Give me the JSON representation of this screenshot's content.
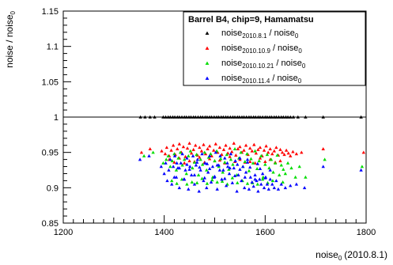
{
  "chart_data": {
    "type": "scatter",
    "title": "",
    "xlabel": "noise",
    "xlabel_sub": "0",
    "xlabel_suffix": "(2010.8.1)",
    "ylabel": "noise / noise",
    "ylabel_sub": "0",
    "xlim": [
      1200,
      1800
    ],
    "ylim": [
      0.85,
      1.15
    ],
    "x_ticks": [
      {
        "value": 1200,
        "label": "1200"
      },
      {
        "value": 1400,
        "label": "1400"
      },
      {
        "value": 1600,
        "label": "1600"
      },
      {
        "value": 1800,
        "label": "1800"
      }
    ],
    "y_ticks": [
      {
        "value": 0.85,
        "label": "0.85"
      },
      {
        "value": 0.9,
        "label": "0.9"
      },
      {
        "value": 0.95,
        "label": "0.95"
      },
      {
        "value": 1.0,
        "label": "1"
      },
      {
        "value": 1.05,
        "label": "1.05"
      },
      {
        "value": 1.1,
        "label": "1.1"
      },
      {
        "value": 1.15,
        "label": "1.15"
      }
    ],
    "reference_line": 1.0,
    "legend": {
      "title": "Barrel B4, chip=9, Hamamatsu",
      "placement": "top-right"
    },
    "series": [
      {
        "name": "noise",
        "name_sub": "2010.8.1",
        "name_suffix": " / noise",
        "name_suffix_sub": "0",
        "color": "#000000",
        "x": [
          1353,
          1362,
          1372,
          1381,
          1398,
          1403,
          1408,
          1412,
          1417,
          1421,
          1426,
          1430,
          1435,
          1440,
          1444,
          1449,
          1453,
          1458,
          1462,
          1467,
          1472,
          1476,
          1481,
          1485,
          1490,
          1494,
          1499,
          1504,
          1508,
          1513,
          1517,
          1522,
          1526,
          1531,
          1536,
          1540,
          1545,
          1549,
          1554,
          1558,
          1563,
          1568,
          1572,
          1577,
          1581,
          1586,
          1590,
          1595,
          1600,
          1604,
          1609,
          1613,
          1618,
          1622,
          1627,
          1632,
          1636,
          1641,
          1645,
          1650,
          1656,
          1665,
          1680,
          1715,
          1790
        ],
        "y": [
          1,
          1,
          1,
          1,
          1,
          1,
          1,
          1,
          1,
          1,
          1,
          1,
          1,
          1,
          1,
          1,
          1,
          1,
          1,
          1,
          1,
          1,
          1,
          1,
          1,
          1,
          1,
          1,
          1,
          1,
          1,
          1,
          1,
          1,
          1,
          1,
          1,
          1,
          1,
          1,
          1,
          1,
          1,
          1,
          1,
          1,
          1,
          1,
          1,
          1,
          1,
          1,
          1,
          1,
          1,
          1,
          1,
          1,
          1,
          1,
          1,
          1,
          1,
          1,
          1
        ]
      },
      {
        "name": "noise",
        "name_sub": "2010.10.9",
        "name_suffix": " / noise",
        "name_suffix_sub": "0",
        "color": "#ff0000",
        "x": [
          1355,
          1372,
          1395,
          1402,
          1405,
          1410,
          1414,
          1418,
          1422,
          1426,
          1430,
          1434,
          1438,
          1442,
          1446,
          1450,
          1454,
          1458,
          1462,
          1466,
          1470,
          1474,
          1478,
          1482,
          1486,
          1490,
          1494,
          1498,
          1502,
          1506,
          1510,
          1514,
          1518,
          1522,
          1526,
          1530,
          1534,
          1538,
          1542,
          1546,
          1550,
          1554,
          1558,
          1562,
          1566,
          1570,
          1574,
          1578,
          1582,
          1586,
          1590,
          1594,
          1598,
          1602,
          1606,
          1610,
          1614,
          1618,
          1622,
          1626,
          1630,
          1634,
          1638,
          1642,
          1646,
          1650,
          1655,
          1662,
          1672,
          1715,
          1795,
          1410,
          1430,
          1450,
          1470,
          1490,
          1510,
          1530,
          1550,
          1570,
          1590,
          1610,
          1630,
          1420,
          1440,
          1460,
          1480,
          1500,
          1520,
          1540,
          1560,
          1580,
          1600,
          1620
        ],
        "y": [
          0.95,
          0.955,
          0.952,
          0.948,
          0.957,
          0.945,
          0.953,
          0.96,
          0.947,
          0.955,
          0.962,
          0.95,
          0.958,
          0.944,
          0.956,
          0.963,
          0.949,
          0.954,
          0.96,
          0.946,
          0.957,
          0.952,
          0.961,
          0.948,
          0.955,
          0.959,
          0.945,
          0.953,
          0.962,
          0.95,
          0.957,
          0.947,
          0.954,
          0.96,
          0.949,
          0.956,
          0.951,
          0.963,
          0.946,
          0.955,
          0.958,
          0.95,
          0.953,
          0.96,
          0.947,
          0.956,
          0.952,
          0.961,
          0.949,
          0.954,
          0.957,
          0.945,
          0.953,
          0.959,
          0.95,
          0.955,
          0.948,
          0.952,
          0.957,
          0.946,
          0.954,
          0.95,
          0.947,
          0.953,
          0.949,
          0.945,
          0.951,
          0.948,
          0.95,
          0.955,
          0.95,
          0.94,
          0.942,
          0.938,
          0.943,
          0.941,
          0.939,
          0.944,
          0.94,
          0.937,
          0.942,
          0.94,
          0.938,
          0.936,
          0.935,
          0.937,
          0.936,
          0.938,
          0.935,
          0.937,
          0.936,
          0.935,
          0.937,
          0.936
        ]
      },
      {
        "name": "noise",
        "name_sub": "2010.10.21",
        "name_suffix": " / noise",
        "name_suffix_sub": "0",
        "color": "#00dd00",
        "x": [
          1360,
          1378,
          1398,
          1404,
          1408,
          1412,
          1416,
          1420,
          1424,
          1428,
          1432,
          1436,
          1440,
          1444,
          1448,
          1452,
          1456,
          1460,
          1464,
          1468,
          1472,
          1476,
          1480,
          1484,
          1488,
          1492,
          1496,
          1500,
          1504,
          1508,
          1512,
          1516,
          1520,
          1524,
          1528,
          1532,
          1536,
          1540,
          1544,
          1548,
          1552,
          1556,
          1560,
          1564,
          1568,
          1572,
          1576,
          1580,
          1584,
          1588,
          1592,
          1596,
          1600,
          1604,
          1608,
          1612,
          1616,
          1620,
          1624,
          1628,
          1632,
          1636,
          1640,
          1645,
          1652,
          1660,
          1668,
          1680,
          1718,
          1792,
          1415,
          1435,
          1455,
          1475,
          1495,
          1515,
          1535,
          1555,
          1575,
          1595,
          1615,
          1635,
          1425,
          1445,
          1465,
          1485,
          1505,
          1525,
          1545,
          1565,
          1585,
          1605
        ],
        "y": [
          0.945,
          0.95,
          0.935,
          0.94,
          0.945,
          0.93,
          0.938,
          0.948,
          0.925,
          0.942,
          0.95,
          0.932,
          0.94,
          0.92,
          0.945,
          0.952,
          0.928,
          0.936,
          0.947,
          0.918,
          0.94,
          0.933,
          0.95,
          0.925,
          0.943,
          0.948,
          0.915,
          0.938,
          0.952,
          0.93,
          0.941,
          0.922,
          0.936,
          0.947,
          0.926,
          0.94,
          0.933,
          0.955,
          0.918,
          0.942,
          0.95,
          0.93,
          0.937,
          0.948,
          0.924,
          0.941,
          0.935,
          0.952,
          0.927,
          0.938,
          0.945,
          0.915,
          0.933,
          0.947,
          0.928,
          0.94,
          0.922,
          0.935,
          0.946,
          0.918,
          0.932,
          0.926,
          0.92,
          0.935,
          0.928,
          0.915,
          0.93,
          0.915,
          0.94,
          0.93,
          0.91,
          0.912,
          0.908,
          0.913,
          0.911,
          0.909,
          0.914,
          0.91,
          0.907,
          0.912,
          0.91,
          0.908,
          0.906,
          0.905,
          0.907,
          0.906,
          0.908,
          0.905,
          0.907,
          0.906,
          0.905,
          0.907
        ]
      },
      {
        "name": "noise",
        "name_sub": "2010.11.4",
        "name_suffix": " / noise",
        "name_suffix_sub": "0",
        "color": "#0000ff",
        "x": [
          1352,
          1370,
          1394,
          1400,
          1403,
          1406,
          1409,
          1412,
          1415,
          1418,
          1421,
          1424,
          1427,
          1430,
          1433,
          1436,
          1439,
          1442,
          1445,
          1448,
          1451,
          1454,
          1457,
          1460,
          1463,
          1466,
          1469,
          1472,
          1475,
          1478,
          1481,
          1484,
          1487,
          1490,
          1493,
          1496,
          1499,
          1502,
          1505,
          1508,
          1511,
          1514,
          1517,
          1520,
          1523,
          1526,
          1529,
          1532,
          1535,
          1538,
          1541,
          1544,
          1547,
          1550,
          1553,
          1556,
          1559,
          1562,
          1565,
          1568,
          1571,
          1574,
          1577,
          1580,
          1583,
          1586,
          1589,
          1592,
          1595,
          1598,
          1601,
          1604,
          1607,
          1610,
          1614,
          1618,
          1622,
          1626,
          1632,
          1640,
          1650,
          1662,
          1678,
          1715,
          1790,
          1420,
          1440,
          1460,
          1480,
          1500,
          1520,
          1540,
          1560,
          1580,
          1600,
          1430,
          1450,
          1470,
          1490,
          1510,
          1530,
          1550,
          1570,
          1590,
          1610,
          1425,
          1445,
          1465,
          1485,
          1505,
          1525,
          1545,
          1565,
          1585
        ],
        "y": [
          0.94,
          0.945,
          0.93,
          0.92,
          0.935,
          0.91,
          0.925,
          0.94,
          0.905,
          0.93,
          0.945,
          0.915,
          0.928,
          0.9,
          0.935,
          0.948,
          0.912,
          0.925,
          0.942,
          0.898,
          0.93,
          0.918,
          0.945,
          0.905,
          0.932,
          0.94,
          0.895,
          0.925,
          0.948,
          0.91,
          0.935,
          0.9,
          0.922,
          0.945,
          0.908,
          0.93,
          0.915,
          0.95,
          0.898,
          0.932,
          0.945,
          0.912,
          0.925,
          0.942,
          0.903,
          0.93,
          0.92,
          0.948,
          0.907,
          0.928,
          0.938,
          0.895,
          0.918,
          0.942,
          0.91,
          0.93,
          0.9,
          0.922,
          0.94,
          0.898,
          0.915,
          0.908,
          0.902,
          0.918,
          0.91,
          0.895,
          0.912,
          0.905,
          0.92,
          0.9,
          0.915,
          0.905,
          0.898,
          0.912,
          0.905,
          0.9,
          0.91,
          0.898,
          0.905,
          0.9,
          0.903,
          0.905,
          0.9,
          0.93,
          0.925,
          0.915,
          0.912,
          0.918,
          0.914,
          0.916,
          0.913,
          0.917,
          0.915,
          0.912,
          0.914,
          0.928,
          0.926,
          0.929,
          0.927,
          0.925,
          0.928,
          0.926,
          0.929,
          0.927,
          0.925,
          0.935,
          0.933,
          0.936,
          0.934,
          0.932,
          0.935,
          0.933,
          0.936,
          0.934
        ]
      }
    ]
  }
}
